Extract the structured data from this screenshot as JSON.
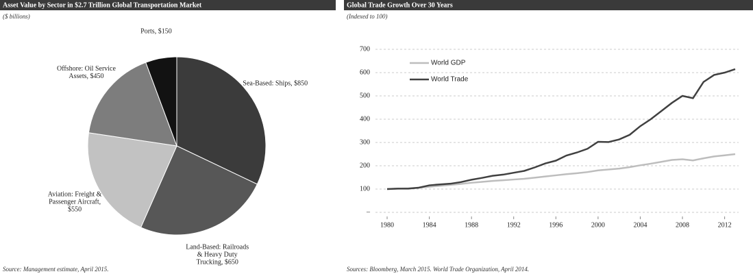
{
  "chart_data": [
    {
      "type": "pie",
      "title": "Asset Value by Sector in $2.7 Trillion Global Transportation Market",
      "subtitle": "($ billions)",
      "categories": [
        "Sea-Based: Ships, $850",
        "Land-Based: Railroads & Heavy Duty Trucking, $650",
        "Aviation: Freight & Passenger Aircraft, $550",
        "Offshore: Oil Service Assets, $450",
        "Ports, $150"
      ],
      "values": [
        850,
        650,
        550,
        450,
        150
      ],
      "colors": [
        "#3b3b3b",
        "#575757",
        "#c2c2c2",
        "#7d7d7d",
        "#121212"
      ],
      "source": "Source: Management estimate, April 2015."
    },
    {
      "type": "line",
      "title": "Global Trade Growth Over 30 Years",
      "subtitle": "(Indexed to 100)",
      "x": [
        1980,
        1981,
        1982,
        1983,
        1984,
        1985,
        1986,
        1987,
        1988,
        1989,
        1990,
        1991,
        1992,
        1993,
        1994,
        1995,
        1996,
        1997,
        1998,
        1999,
        2000,
        2001,
        2002,
        2003,
        2004,
        2005,
        2006,
        2007,
        2008,
        2009,
        2010,
        2011,
        2012,
        2013
      ],
      "series": [
        {
          "name": "World GDP",
          "color": "#bdbdbd",
          "values": [
            100,
            102,
            103,
            106,
            110,
            114,
            118,
            122,
            127,
            131,
            135,
            138,
            141,
            144,
            149,
            154,
            159,
            164,
            168,
            173,
            180,
            184,
            188,
            194,
            202,
            209,
            217,
            225,
            228,
            223,
            232,
            240,
            245,
            250
          ]
        },
        {
          "name": "World Trade",
          "color": "#404040",
          "values": [
            100,
            102,
            102,
            106,
            116,
            120,
            123,
            130,
            140,
            148,
            157,
            162,
            170,
            178,
            193,
            210,
            222,
            244,
            257,
            273,
            303,
            302,
            313,
            333,
            370,
            400,
            435,
            470,
            500,
            490,
            560,
            590,
            600,
            615
          ]
        }
      ],
      "xlim": [
        1980,
        2013
      ],
      "xticks": [
        1980,
        1984,
        1988,
        1992,
        1996,
        2000,
        2004,
        2008,
        2012
      ],
      "ylim": [
        0,
        700
      ],
      "yticks": [
        {
          "value": 0,
          "label": "–"
        },
        100,
        200,
        300,
        400,
        500,
        600,
        700
      ],
      "grid": true,
      "legend": "upper left",
      "source": "Sources: Bloomberg, March 2015. World Trade Organization, April 2014."
    }
  ]
}
